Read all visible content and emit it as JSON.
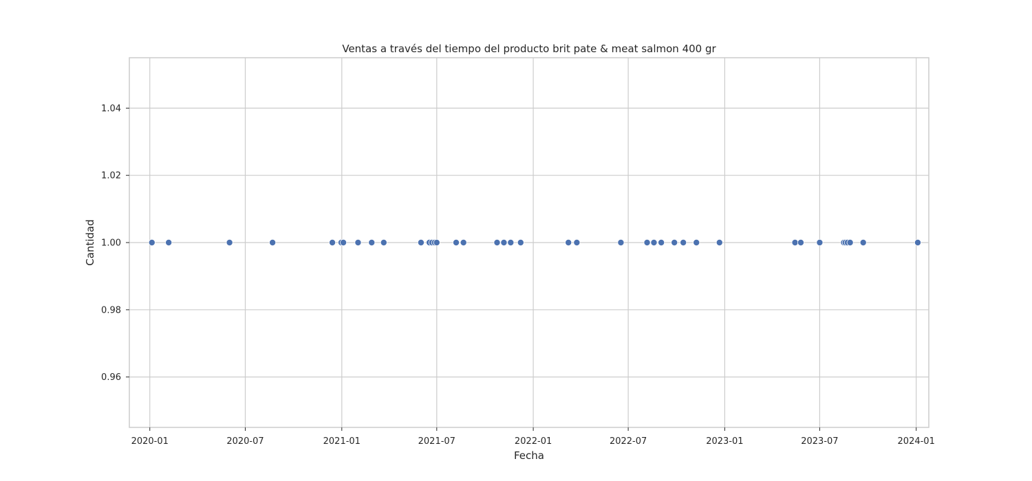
{
  "chart_data": {
    "type": "scatter",
    "title": "Ventas a través del tiempo del producto brit pate & meat salmon 400 gr",
    "xlabel": "Fecha",
    "ylabel": "Cantidad",
    "x_ticks": [
      "2020-01",
      "2020-07",
      "2021-01",
      "2021-07",
      "2022-01",
      "2022-07",
      "2023-01",
      "2023-07",
      "2024-01"
    ],
    "y_ticks": [
      "0.96",
      "0.98",
      "1.00",
      "1.02",
      "1.04"
    ],
    "ylim": [
      0.945,
      1.055
    ],
    "xlim": [
      "2019-11-23",
      "2024-01-25"
    ],
    "grid": true,
    "marker_color": "#4c72b0",
    "series": [
      {
        "x": [
          "2020-01-05",
          "2020-02-06",
          "2020-06-01",
          "2020-08-22",
          "2020-12-14",
          "2020-12-31",
          "2021-01-04",
          "2021-02-01",
          "2021-02-27",
          "2021-03-22",
          "2021-06-01",
          "2021-06-17",
          "2021-06-22",
          "2021-06-27",
          "2021-07-01",
          "2021-08-07",
          "2021-08-21",
          "2021-10-24",
          "2021-11-06",
          "2021-11-19",
          "2021-12-08",
          "2022-03-09",
          "2022-03-25",
          "2022-06-17",
          "2022-08-06",
          "2022-08-19",
          "2022-09-02",
          "2022-09-27",
          "2022-10-14",
          "2022-11-08",
          "2022-12-22",
          "2023-05-15",
          "2023-05-26",
          "2023-07-01",
          "2023-08-16",
          "2023-08-19",
          "2023-08-23",
          "2023-08-28",
          "2023-09-22",
          "2024-01-04"
        ],
        "y": [
          1,
          1,
          1,
          1,
          1,
          1,
          1,
          1,
          1,
          1,
          1,
          1,
          1,
          1,
          1,
          1,
          1,
          1,
          1,
          1,
          1,
          1,
          1,
          1,
          1,
          1,
          1,
          1,
          1,
          1,
          1,
          1,
          1,
          1,
          1,
          1,
          1,
          1,
          1,
          1
        ]
      }
    ]
  }
}
